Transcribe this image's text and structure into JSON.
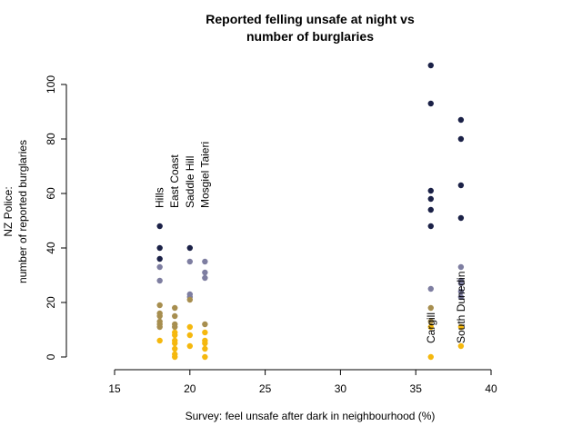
{
  "chart_data": {
    "type": "scatter",
    "title_lines": [
      "Reported felling unsafe at night vs",
      "number of burglaries"
    ],
    "xlabel": "Survey: feel unsafe after dark in neighbourhood (%)",
    "ylabel_lines": [
      "NZ Police:",
      "number of reported burglaries"
    ],
    "xlim": [
      15,
      40
    ],
    "ylim": [
      0,
      100
    ],
    "xticks": [
      15,
      20,
      25,
      30,
      35,
      40
    ],
    "yticks": [
      0,
      20,
      40,
      60,
      80,
      100
    ],
    "grid": false,
    "legend": "none",
    "series": [
      {
        "color": "#1b2147",
        "points": [
          [
            18,
            48
          ],
          [
            18,
            40
          ],
          [
            18,
            36
          ],
          [
            20,
            40
          ],
          [
            36,
            107
          ],
          [
            36,
            93
          ],
          [
            36,
            61
          ],
          [
            36,
            58
          ],
          [
            36,
            54
          ],
          [
            36,
            48
          ],
          [
            38,
            87
          ],
          [
            38,
            80
          ],
          [
            38,
            63
          ],
          [
            38,
            51
          ]
        ]
      },
      {
        "color": "#7e7ea1",
        "points": [
          [
            18,
            33
          ],
          [
            18,
            28
          ],
          [
            20,
            35
          ],
          [
            20,
            23
          ],
          [
            20,
            22
          ],
          [
            21,
            35
          ],
          [
            21,
            31
          ],
          [
            21,
            29
          ],
          [
            36,
            25
          ],
          [
            38,
            33
          ],
          [
            38,
            28
          ],
          [
            38,
            27
          ],
          [
            38,
            24
          ],
          [
            38,
            22
          ]
        ]
      },
      {
        "color": "#a78e4f",
        "points": [
          [
            18,
            19
          ],
          [
            18,
            16
          ],
          [
            18,
            15
          ],
          [
            18,
            13
          ],
          [
            18,
            12
          ],
          [
            18,
            11
          ],
          [
            19,
            18
          ],
          [
            19,
            15
          ],
          [
            19,
            12
          ],
          [
            19,
            11
          ],
          [
            20,
            21
          ],
          [
            21,
            12
          ],
          [
            36,
            18
          ],
          [
            36,
            13
          ]
        ]
      },
      {
        "color": "#f5b80e",
        "points": [
          [
            18,
            6
          ],
          [
            19,
            9
          ],
          [
            19,
            8
          ],
          [
            19,
            6
          ],
          [
            19,
            5
          ],
          [
            19,
            3
          ],
          [
            19,
            1
          ],
          [
            19,
            0
          ],
          [
            20,
            11
          ],
          [
            20,
            8
          ],
          [
            20,
            4
          ],
          [
            21,
            9
          ],
          [
            21,
            6
          ],
          [
            21,
            5
          ],
          [
            21,
            3
          ],
          [
            21,
            0
          ],
          [
            36,
            11
          ],
          [
            36,
            0
          ],
          [
            38,
            11
          ],
          [
            38,
            4
          ]
        ]
      }
    ],
    "annotations": [
      {
        "text": "Hills",
        "x": 18
      },
      {
        "text": "East Coast",
        "x": 19
      },
      {
        "text": "Saddle Hill",
        "x": 20
      },
      {
        "text": "Mosgiel Taieri",
        "x": 21
      },
      {
        "text": "Cargill",
        "x": 36
      },
      {
        "text": "South Dunedin",
        "x": 38
      }
    ]
  }
}
